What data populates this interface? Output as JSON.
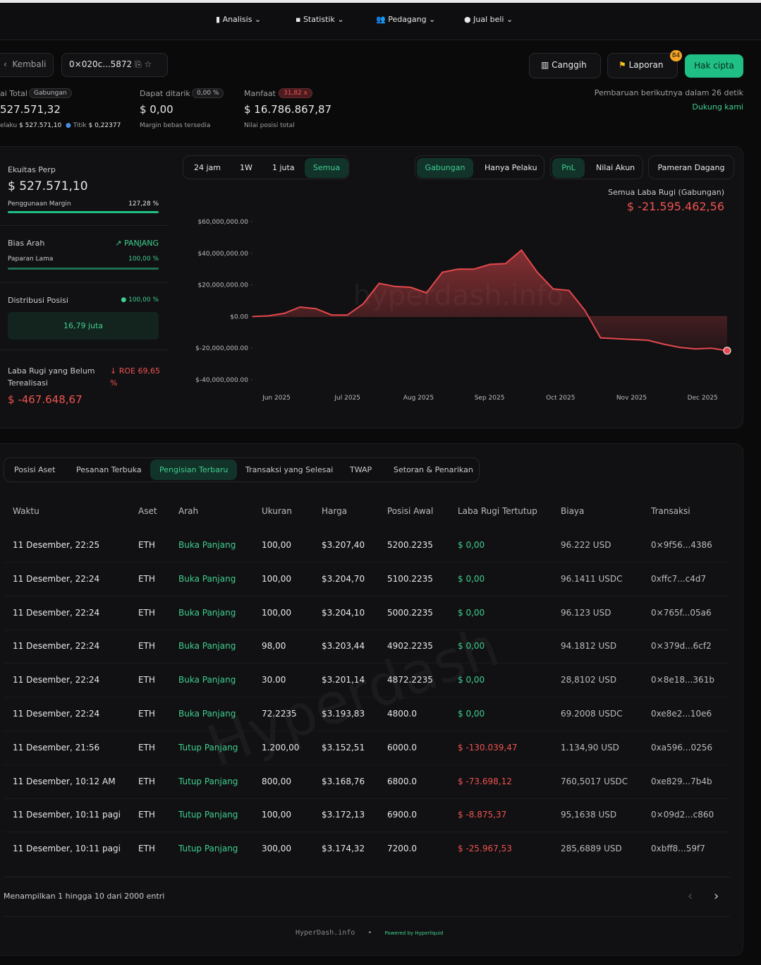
{
  "nav": [
    "Analisis",
    "Statistik",
    "Pedagang",
    "Jual beli"
  ],
  "toolbar": {
    "back": "Kembali",
    "address": "0×020c...5872",
    "buttons": [
      "Canggih",
      "Laporan",
      "Hak cipta"
    ],
    "badge": "84"
  },
  "stats": [
    {
      "label": "ai Total",
      "chip": "Gabungan",
      "value": "527.571,32",
      "sub": [
        "elaku",
        "$ 527.571,10",
        "Titik",
        "$ 0,22377"
      ]
    },
    {
      "label": "Dapat ditarik",
      "chip": "0,00 %",
      "value": "$ 0,00",
      "note": "Margin bebas tersedia"
    },
    {
      "label": "Manfaat",
      "chip": "31,82 x",
      "value": "$ 16.786.867,87",
      "note": "Nilai posisi total"
    }
  ],
  "update": {
    "text": "Pembaruan berikutnya dalam 26 detik",
    "link": "Dukung kami"
  },
  "side": {
    "equity": {
      "label": "Ekuitas Perp",
      "value": "$ 527.571,10",
      "bar_label": "Penggunaan Margin",
      "bar_value": "127,28 %"
    },
    "bias": {
      "label": "Bias Arah",
      "direction": "PANJANG",
      "bar_label": "Paparan Lama",
      "bar_value": "100,00 %"
    },
    "distribution": {
      "label": "Distribusi Posisi",
      "pct": "100,00 %",
      "box": "16,79 juta"
    },
    "unrealized": {
      "label": "Laba Rugi yang Belum Terealisasi",
      "roe": "ROE 69,65 %",
      "value": "$ -467.648,67"
    }
  },
  "controls": {
    "ranges": [
      "24 jam",
      "1W",
      "1 juta",
      "Semua"
    ],
    "views": [
      "Gabungan",
      "Hanya Pelaku"
    ],
    "metrics": [
      "PnL",
      "Nilai Akun"
    ],
    "extra": "Pameran Dagang"
  },
  "chart": {
    "type": "area",
    "title": "Semua Laba Rugi (Gabungan)",
    "total": "$ -21.595.462,56",
    "watermark": "hyperdash.info",
    "color": "#e5484d",
    "ylim": [
      -40000000,
      60000000
    ],
    "yticks": [
      {
        "value": 60000000,
        "label": "$60,000,000.00"
      },
      {
        "value": 40000000,
        "label": "$40,000,000.00"
      },
      {
        "value": 20000000,
        "label": "$20,000,000.00"
      },
      {
        "value": 0,
        "label": "$0.00"
      },
      {
        "value": -20000000,
        "label": "$-20,000,000.00"
      },
      {
        "value": -40000000,
        "label": "$-40,000,000.00"
      }
    ],
    "xticks": [
      "Jun 2025",
      "Jul 2025",
      "Aug 2025",
      "Sep 2025",
      "Oct 2025",
      "Nov 2025",
      "Dec 2025"
    ],
    "values": [
      0,
      400000,
      2000000,
      6000000,
      5000000,
      1000000,
      1000000,
      8000000,
      21000000,
      19000000,
      18500000,
      15000000,
      28000000,
      30000000,
      30000000,
      33000000,
      33500000,
      42000000,
      28000000,
      17500000,
      16500000,
      4000000,
      -13500000,
      -14000000,
      -14500000,
      -15000000,
      -17500000,
      -19500000,
      -20500000,
      -20000000,
      -21600000
    ]
  },
  "tabs": [
    "Posisi Aset",
    "Pesanan Terbuka",
    "Pengisian Terbaru",
    "Transaksi yang Selesai",
    "TWAP",
    "Setoran & Penarikan"
  ],
  "table": {
    "headers": [
      "Waktu",
      "Aset",
      "Arah",
      "Ukuran",
      "Harga",
      "Posisi Awal",
      "Laba Rugi Tertutup",
      "Biaya",
      "Transaksi"
    ],
    "watermark": "Hyperdash",
    "rows": [
      [
        "11 Desember, 22:25",
        "ETH",
        "Buka Panjang",
        "100,00",
        "$3.207,40",
        "5200.2235",
        "$ 0,00",
        "96.222 USD",
        "0×9f56...4386"
      ],
      [
        "11 Desember, 22:24",
        "ETH",
        "Buka Panjang",
        "100,00",
        "$3.204,70",
        "5100.2235",
        "$ 0,00",
        "96.1411 USDC",
        "0xffc7...c4d7"
      ],
      [
        "11 Desember, 22:24",
        "ETH",
        "Buka Panjang",
        "100,00",
        "$3.204,10",
        "5000.2235",
        "$ 0,00",
        "96.123 USD",
        "0×765f...05a6"
      ],
      [
        "11 Desember, 22:24",
        "ETH",
        "Buka Panjang",
        "98,00",
        "$3.203,44",
        "4902.2235",
        "$ 0,00",
        "94.1812 USD",
        "0×379d...6cf2"
      ],
      [
        "11 Desember, 22:24",
        "ETH",
        "Buka Panjang",
        "30.00",
        "$3.201,14",
        "4872.2235",
        "$ 0,00",
        "28,8102 USD",
        "0×8e18...361b"
      ],
      [
        "11 Desember, 22:24",
        "ETH",
        "Buka Panjang",
        "72.2235",
        "$3.193,83",
        "4800.0",
        "$ 0,00",
        "69.2008 USDC",
        "0xe8e2...10e6"
      ],
      [
        "11 Desember, 21:56",
        "ETH",
        "Tutup Panjang",
        "1.200,00",
        "$3.152,51",
        "6000.0",
        "$ -130.039,47",
        "1.134,90 USD",
        "0xa596...0256"
      ],
      [
        "11 Desember, 10:12 AM",
        "ETH",
        "Tutup Panjang",
        "800,00",
        "$3.168,76",
        "6800.0",
        "$ -73.698,12",
        "760,5017 USDC",
        "0xe829...7b4b"
      ],
      [
        "11 Desember, 10:11 pagi",
        "ETH",
        "Tutup Panjang",
        "100,00",
        "$3.172,13",
        "6900.0",
        "$ -8.875,37",
        "95,1638 USD",
        "0×09d2...c860"
      ],
      [
        "11 Desember, 10:11 pagi",
        "ETH",
        "Tutup Panjang",
        "300,00",
        "$3.174,32",
        "7200.0",
        "$ -25.967,53",
        "285,6889 USD",
        "0xbff8...59f7"
      ]
    ]
  },
  "footer": {
    "showing": "Menampilkan 1 hingga 10 dari 2000 entri",
    "brand": "HyperDash.info",
    "powered": "Powered by Hyperliquid"
  }
}
